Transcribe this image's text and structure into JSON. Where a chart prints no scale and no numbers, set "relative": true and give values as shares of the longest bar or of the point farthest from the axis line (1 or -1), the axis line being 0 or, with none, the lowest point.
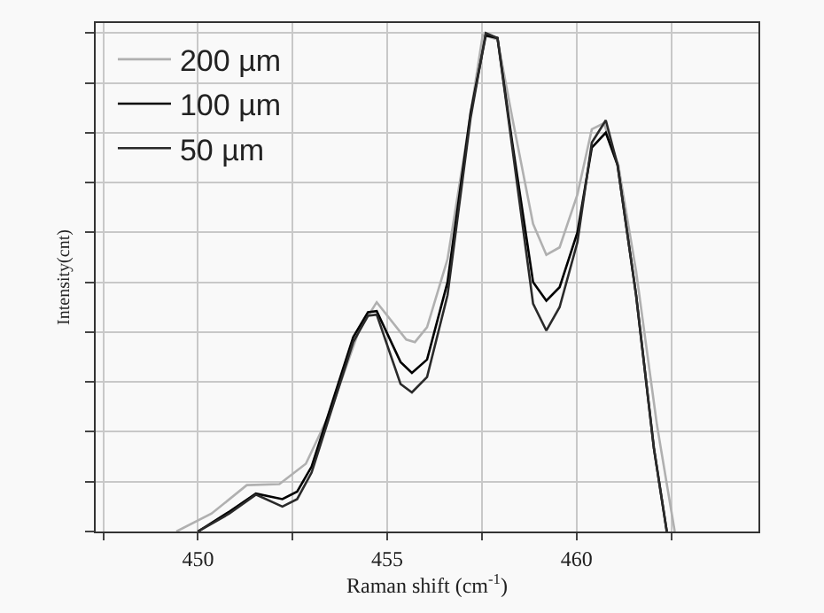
{
  "chart_data": {
    "type": "line",
    "relative": true,
    "xlabel": "Raman shift (cm$^{-1}$)",
    "ylabel": "Intensity(cnt)",
    "xlim": [
      447.3,
      464.8
    ],
    "xticks": [
      {
        "value": 447.5,
        "label": null
      },
      450,
      {
        "value": 452.5,
        "label": null
      },
      455,
      {
        "value": 457.5,
        "label": null
      },
      460,
      {
        "value": 462.5,
        "label": null
      }
    ],
    "grid": true,
    "legend": "top left",
    "marker": "none",
    "line_style": "solid",
    "series": [
      {
        "name": "200 µm",
        "color": "#b0b0b0",
        "x": [
          449.43,
          450.36,
          451.29,
          452.15,
          452.85,
          453.48,
          454.25,
          454.72,
          455.5,
          455.73,
          456.05,
          456.59,
          457.06,
          457.52,
          457.91,
          458.3,
          458.85,
          459.2,
          459.55,
          460.02,
          460.4,
          460.72,
          461.1,
          461.57,
          462.12,
          462.59
        ],
        "values": [
          0,
          0.036,
          0.093,
          0.095,
          0.136,
          0.237,
          0.403,
          0.46,
          0.385,
          0.38,
          0.41,
          0.546,
          0.77,
          0.996,
          0.987,
          0.83,
          0.617,
          0.555,
          0.57,
          0.676,
          0.807,
          0.819,
          0.735,
          0.522,
          0.214,
          0
        ]
      },
      {
        "name": "100 µm",
        "color": "#000000",
        "x": [
          450.0,
          450.83,
          451.53,
          452.23,
          452.62,
          453.0,
          454.1,
          454.49,
          454.72,
          455.35,
          455.65,
          456.05,
          456.59,
          457.2,
          457.6,
          457.91,
          458.3,
          458.85,
          459.2,
          459.55,
          460.02,
          460.4,
          460.77,
          461.08,
          461.57,
          462.04,
          462.38
        ],
        "values": [
          0,
          0.04,
          0.076,
          0.065,
          0.08,
          0.13,
          0.39,
          0.44,
          0.442,
          0.34,
          0.318,
          0.345,
          0.5,
          0.84,
          0.995,
          0.99,
          0.78,
          0.5,
          0.463,
          0.49,
          0.6,
          0.77,
          0.8,
          0.735,
          0.474,
          0.167,
          0
        ]
      },
      {
        "name": "50 µm",
        "color": "#2a2a2a",
        "x": [
          450.0,
          450.83,
          451.53,
          452.23,
          452.62,
          453.0,
          454.1,
          454.49,
          454.72,
          455.35,
          455.65,
          456.05,
          456.59,
          457.2,
          457.6,
          457.91,
          458.3,
          458.85,
          459.2,
          459.55,
          460.02,
          460.4,
          460.77,
          461.08,
          461.57,
          462.04,
          462.38
        ],
        "values": [
          0,
          0.036,
          0.074,
          0.05,
          0.065,
          0.118,
          0.38,
          0.433,
          0.435,
          0.296,
          0.279,
          0.31,
          0.474,
          0.83,
          1.0,
          0.99,
          0.77,
          0.457,
          0.403,
          0.45,
          0.58,
          0.78,
          0.825,
          0.735,
          0.474,
          0.167,
          0
        ]
      }
    ]
  }
}
